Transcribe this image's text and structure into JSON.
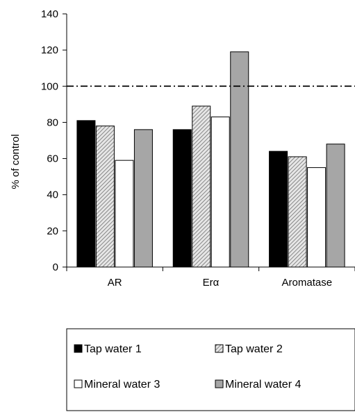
{
  "chart_data": {
    "type": "bar",
    "title": "",
    "xlabel": "",
    "ylabel": "% of control",
    "ylim": [
      0,
      140
    ],
    "yticks": [
      0,
      20,
      40,
      60,
      80,
      100,
      120,
      140
    ],
    "categories": [
      "AR",
      "Erα",
      "Aromatase"
    ],
    "reference_line": {
      "value": 100,
      "style": "dash-dot"
    },
    "grid": false,
    "legend_position": "bottom",
    "series": [
      {
        "name": "Tap water 1",
        "values": [
          81,
          76,
          64
        ],
        "color": "#000000",
        "pattern": "solid"
      },
      {
        "name": "Tap water 2",
        "values": [
          78,
          89,
          61
        ],
        "color": "#bdbdbd",
        "pattern": "hatched"
      },
      {
        "name": "Mineral water 3",
        "values": [
          59,
          83,
          55
        ],
        "color": "#ffffff",
        "pattern": "solid"
      },
      {
        "name": "Mineral water 4",
        "values": [
          76,
          119,
          68
        ],
        "color": "#a6a6a6",
        "pattern": "solid"
      }
    ]
  }
}
